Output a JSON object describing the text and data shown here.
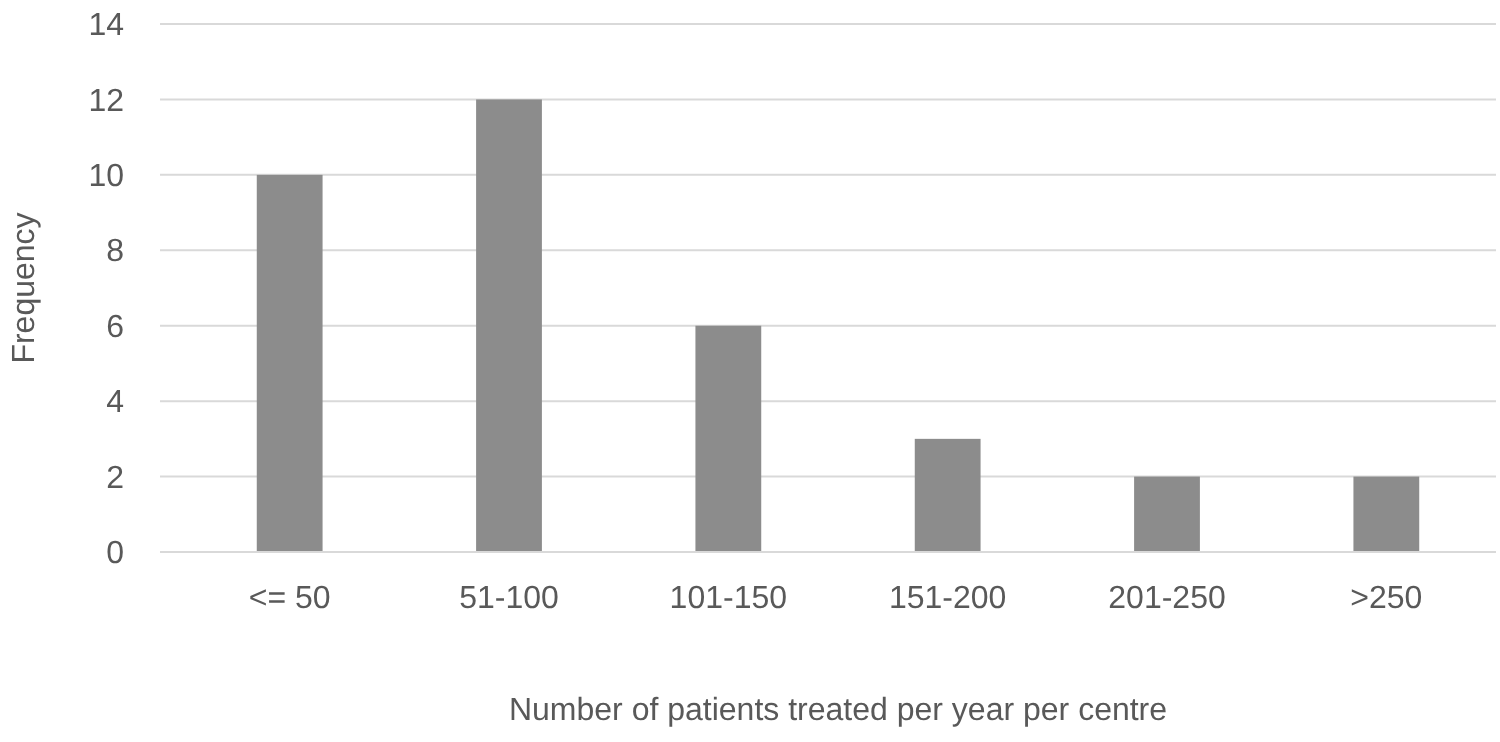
{
  "chart_data": {
    "type": "bar",
    "xlabel": "Number of patients treated per year per centre",
    "ylabel": "Frequency",
    "categories": [
      "<= 50",
      "51-100",
      "101-150",
      "151-200",
      "201-250",
      ">250"
    ],
    "values": [
      10,
      12,
      6,
      3,
      2,
      2
    ],
    "color": "#8c8c8c",
    "ylim": [
      0,
      14
    ],
    "yticks": [
      0,
      2,
      4,
      6,
      8,
      10,
      12,
      14
    ],
    "grid": "y"
  }
}
